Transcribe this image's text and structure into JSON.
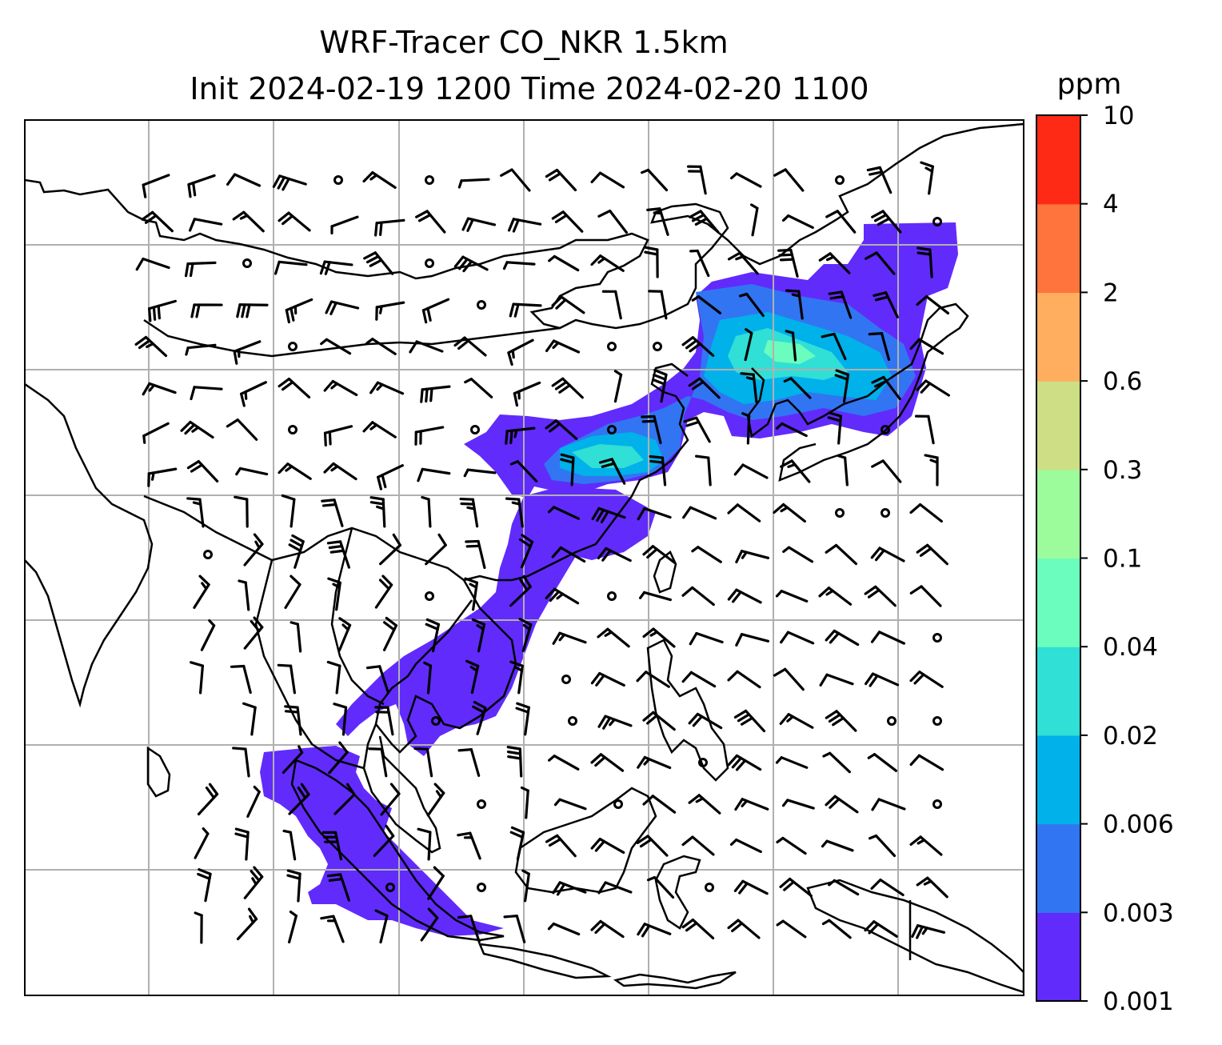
{
  "title": {
    "line1": "WRF-Tracer CO_NKR 1.5km",
    "line2": "Init 2024-02-19 1200 Time 2024-02-20 1100"
  },
  "colorbar": {
    "unit": "ppm",
    "ticks": [
      "0.001",
      "0.003",
      "0.006",
      "0.02",
      "0.04",
      "0.1",
      "0.3",
      "0.6",
      "2",
      "4",
      "10"
    ],
    "colors": [
      "#612bfc",
      "#3275f2",
      "#00b1ea",
      "#30dfd5",
      "#6bfdbd",
      "#9cfb9b",
      "#cede84",
      "#ffad5f",
      "#ff733c",
      "#ff2a16"
    ]
  },
  "map": {
    "gridlines": true,
    "grid_color": "#b0b0b0",
    "coast_color": "#000000",
    "plume_color": "#612bfc",
    "plume_core_colors": [
      "#3275f2",
      "#00b1ea",
      "#30dfd5",
      "#6bfdbd"
    ],
    "wind_barbs": true
  }
}
